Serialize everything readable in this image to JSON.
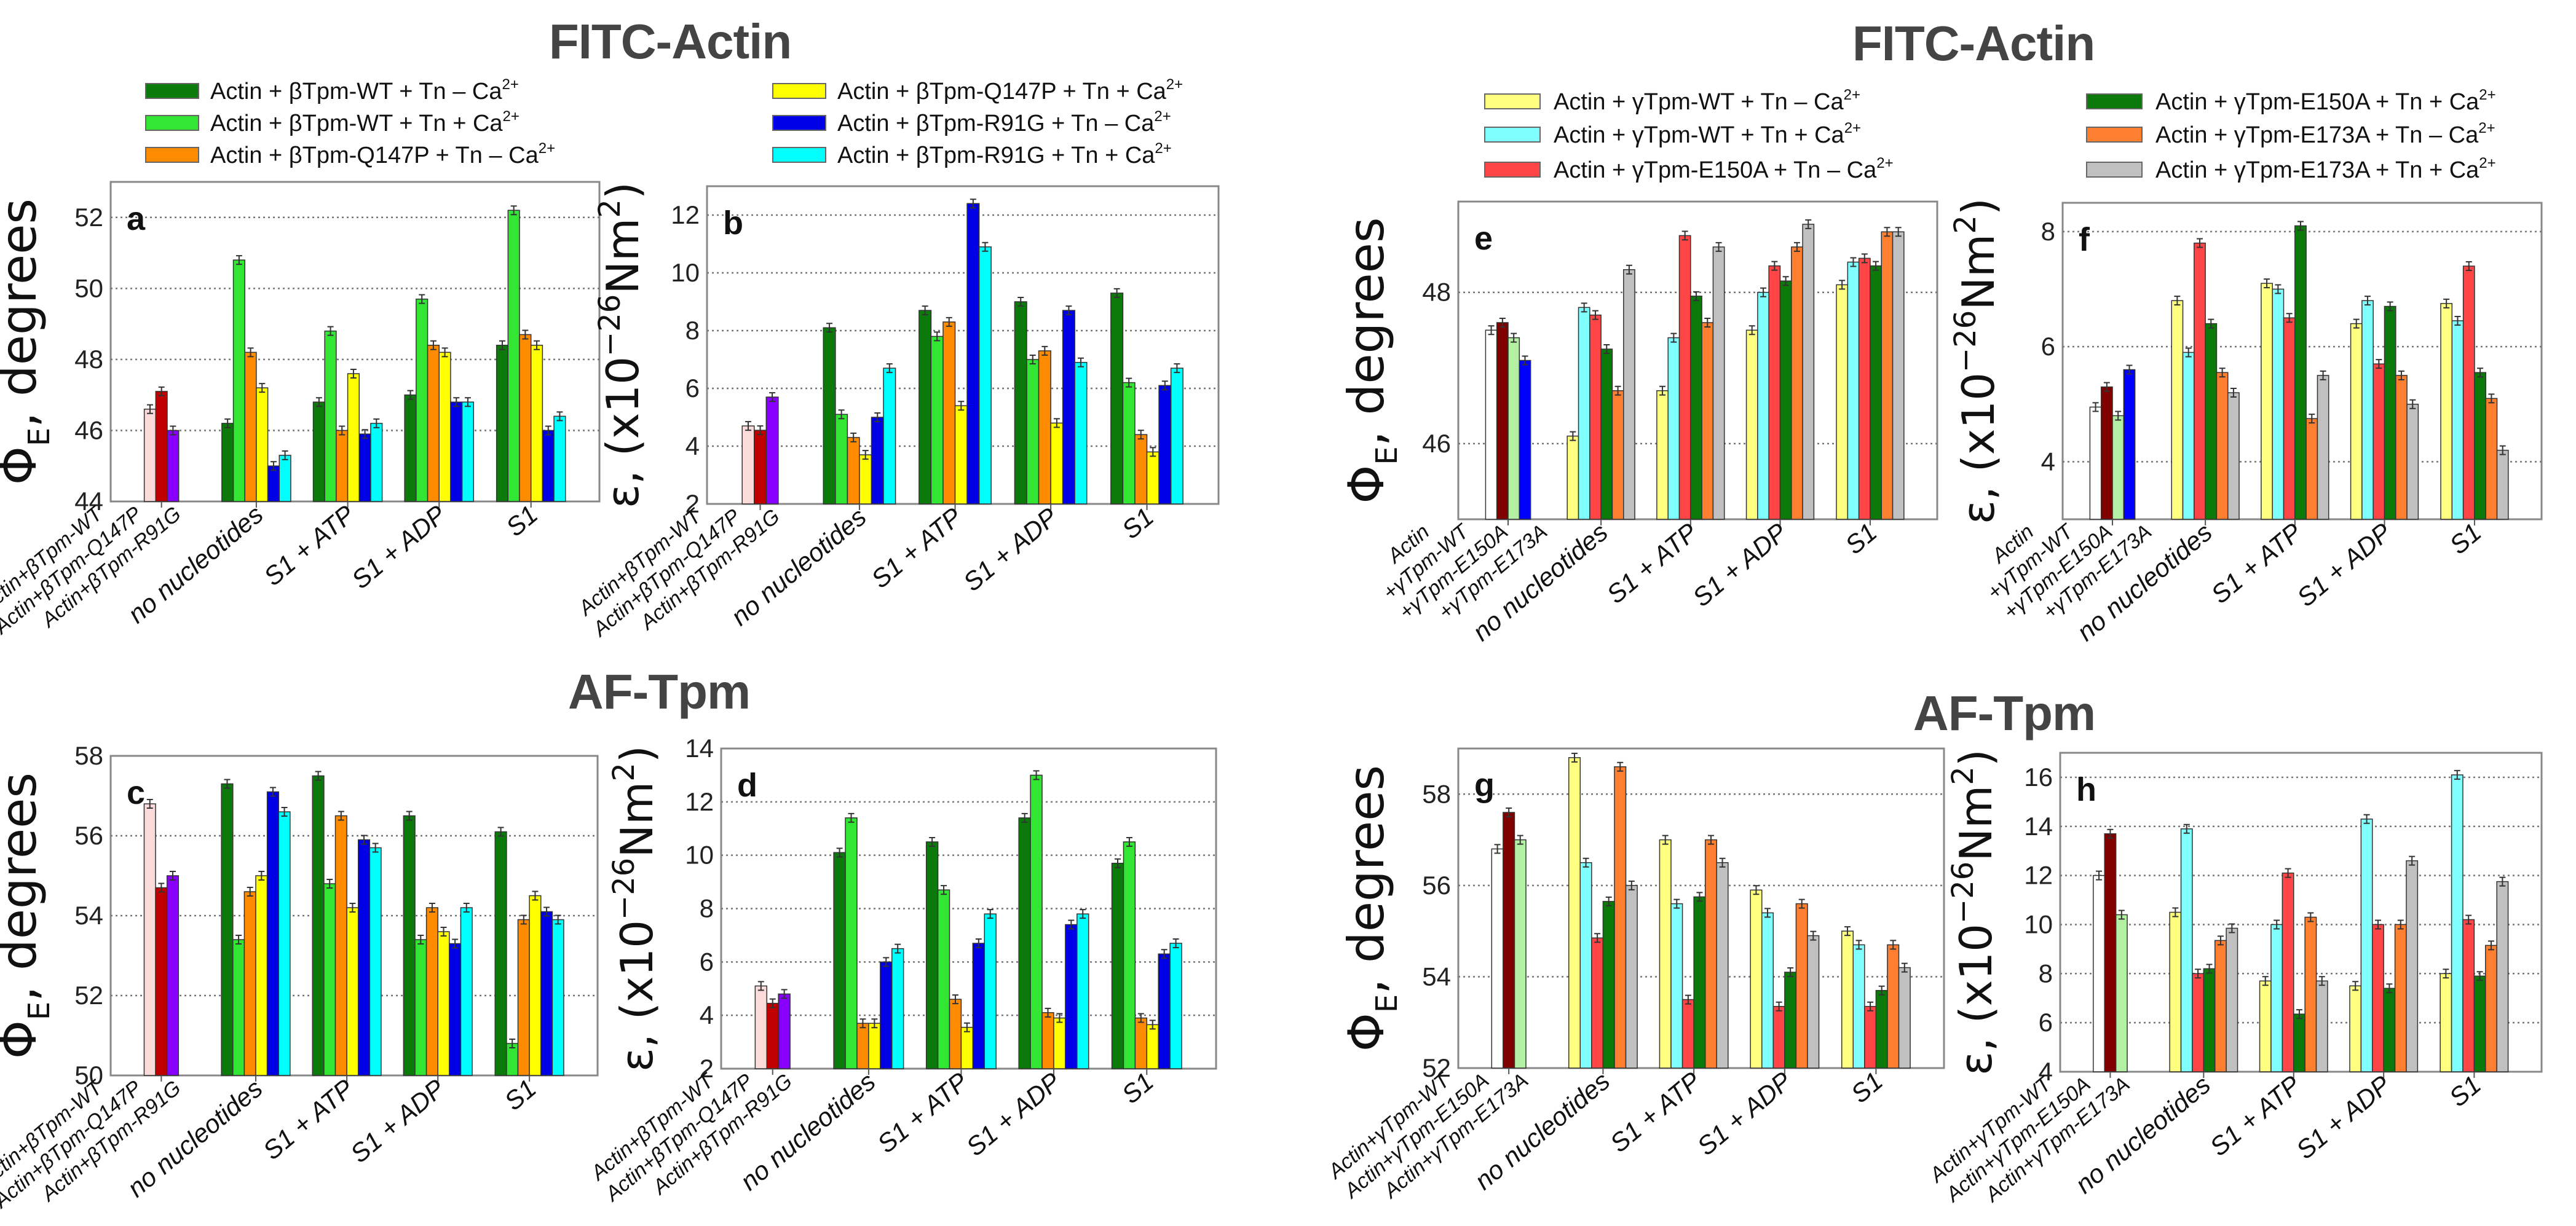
{
  "titles": {
    "fitc_left": "FITC-Actin",
    "af_left": "AF-Tpm",
    "fitc_right": "FITC-Actin",
    "af_right": "AF-Tpm"
  },
  "legend_left": [
    {
      "text": "Actin + βTpm-WT + Tn – Ca",
      "sup": "2+",
      "color": "#0b7a0b"
    },
    {
      "text": "Actin + βTpm-WT + Tn + Ca",
      "sup": "2+",
      "color": "#33e633"
    },
    {
      "text": "Actin + βTpm-Q147P + Tn – Ca",
      "sup": "2+",
      "color": "#ff8c00"
    },
    {
      "text": "Actin + βTpm-Q147P + Tn + Ca",
      "sup": "2+",
      "color": "#ffff00"
    },
    {
      "text": "Actin + βTpm-R91G + Tn – Ca",
      "sup": "2+",
      "color": "#0000e6"
    },
    {
      "text": "Actin + βTpm-R91G + Tn + Ca",
      "sup": "2+",
      "color": "#00ffff"
    }
  ],
  "legend_right": [
    {
      "text": "Actin + γTpm-WT + Tn – Ca",
      "sup": "2+",
      "color": "#ffff80"
    },
    {
      "text": "Actin + γTpm-WT + Tn + Ca",
      "sup": "2+",
      "color": "#80ffff"
    },
    {
      "text": "Actin + γTpm-E150A + Tn – Ca",
      "sup": "2+",
      "color": "#ff4545"
    },
    {
      "text": "Actin + γTpm-E150A + Tn + Ca",
      "sup": "2+",
      "color": "#0b7a0b"
    },
    {
      "text": "Actin + γTpm-E173A + Tn – Ca",
      "sup": "2+",
      "color": "#ff7f30"
    },
    {
      "text": "Actin + γTpm-E173A + Tn + Ca",
      "sup": "2+",
      "color": "#c0c0c0"
    }
  ],
  "chart_data": [
    {
      "panel": "a",
      "type": "bar",
      "ylabel": [
        {
          "t": "Φ"
        },
        {
          "t": "E",
          "sub": true
        },
        {
          "t": ", degrees"
        }
      ],
      "ylim": [
        44,
        53
      ],
      "yticks": [
        44,
        46,
        48,
        50,
        52
      ],
      "base_labels": [
        "Actin+βTpm-WT",
        "Actin+βTpm-Q147P",
        "Actin+βTpm-R91G"
      ],
      "base_values": [
        46.6,
        47.1,
        46.0
      ],
      "base_colors": [
        "#fbdada",
        "#c00000",
        "#8800ff"
      ],
      "categories": [
        "no nucleotides",
        "S1 + ATP",
        "S1 + ADP",
        "S1"
      ],
      "series": [
        {
          "name": "Actin + βTpm-WT + Tn – Ca2+",
          "color": "#0b7a0b",
          "values": [
            46.2,
            46.8,
            47.0,
            48.4
          ]
        },
        {
          "name": "Actin + βTpm-WT + Tn + Ca2+",
          "color": "#33e633",
          "values": [
            50.8,
            48.8,
            49.7,
            52.2
          ]
        },
        {
          "name": "Actin + βTpm-Q147P + Tn – Ca2+",
          "color": "#ff8c00",
          "values": [
            48.2,
            46.0,
            48.4,
            48.7
          ]
        },
        {
          "name": "Actin + βTpm-Q147P + Tn + Ca2+",
          "color": "#ffff00",
          "values": [
            47.2,
            47.6,
            48.2,
            48.4
          ]
        },
        {
          "name": "Actin + βTpm-R91G + Tn – Ca2+",
          "color": "#0000e6",
          "values": [
            45.0,
            45.9,
            46.8,
            46.0
          ]
        },
        {
          "name": "Actin + βTpm-R91G + Tn + Ca2+",
          "color": "#00ffff",
          "values": [
            45.3,
            46.2,
            46.8,
            46.4
          ]
        }
      ]
    },
    {
      "panel": "b",
      "type": "bar",
      "ylabel": [
        {
          "t": "ε, (x10"
        },
        {
          "t": "−26",
          "sup": true
        },
        {
          "t": "Nm"
        },
        {
          "t": "2",
          "sup": true
        },
        {
          "t": ")"
        }
      ],
      "ylim": [
        2,
        13
      ],
      "yticks": [
        2,
        4,
        6,
        8,
        10,
        12
      ],
      "base_labels": [
        "Actin+βTpm-WT",
        "Actin+βTpm-Q147P",
        "Actin+βTpm-R91G"
      ],
      "base_values": [
        4.7,
        4.55,
        5.7
      ],
      "base_colors": [
        "#fbdada",
        "#c00000",
        "#8800ff"
      ],
      "categories": [
        "no nucleotides",
        "S1 + ATP",
        "S1 + ADP",
        "S1"
      ],
      "series": [
        {
          "name": "Actin + βTpm-WT + Tn – Ca2+",
          "color": "#0b7a0b",
          "values": [
            8.1,
            8.7,
            9.0,
            9.3
          ]
        },
        {
          "name": "Actin + βTpm-WT + Tn + Ca2+",
          "color": "#33e633",
          "values": [
            5.1,
            7.8,
            7.0,
            6.2
          ]
        },
        {
          "name": "Actin + βTpm-Q147P + Tn – Ca2+",
          "color": "#ff8c00",
          "values": [
            4.3,
            8.3,
            7.3,
            4.4
          ]
        },
        {
          "name": "Actin + βTpm-Q147P + Tn + Ca2+",
          "color": "#ffff00",
          "values": [
            3.7,
            5.4,
            4.8,
            3.8
          ]
        },
        {
          "name": "Actin + βTpm-R91G + Tn – Ca2+",
          "color": "#0000e6",
          "values": [
            5.0,
            12.4,
            8.7,
            6.1
          ]
        },
        {
          "name": "Actin + βTpm-R91G + Tn + Ca2+",
          "color": "#00ffff",
          "values": [
            6.7,
            10.9,
            6.9,
            6.7
          ]
        }
      ]
    },
    {
      "panel": "c",
      "type": "bar",
      "ylabel": [
        {
          "t": "Φ"
        },
        {
          "t": "E",
          "sub": true
        },
        {
          "t": ", degrees"
        }
      ],
      "ylim": [
        50,
        58
      ],
      "yticks": [
        50,
        52,
        54,
        56,
        58
      ],
      "base_labels": [
        "Actin+βTpm-WT",
        "Actin+βTpm-Q147P",
        "Actin+βTpm-R91G"
      ],
      "base_values": [
        56.8,
        54.7,
        55.0
      ],
      "base_colors": [
        "#fbdada",
        "#c00000",
        "#8800ff"
      ],
      "categories": [
        "no nucleotides",
        "S1 + ATP",
        "S1 + ADP",
        "S1"
      ],
      "series": [
        {
          "name": "Actin + βTpm-WT + Tn – Ca2+",
          "color": "#0b7a0b",
          "values": [
            57.3,
            57.5,
            56.5,
            56.1
          ]
        },
        {
          "name": "Actin + βTpm-WT + Tn + Ca2+",
          "color": "#33e633",
          "values": [
            53.4,
            54.8,
            53.4,
            50.8
          ]
        },
        {
          "name": "Actin + βTpm-Q147P + Tn – Ca2+",
          "color": "#ff8c00",
          "values": [
            54.6,
            56.5,
            54.2,
            53.9
          ]
        },
        {
          "name": "Actin + βTpm-Q147P + Tn + Ca2+",
          "color": "#ffff00",
          "values": [
            55.0,
            54.2,
            53.6,
            54.5
          ]
        },
        {
          "name": "Actin + βTpm-R91G + Tn – Ca2+",
          "color": "#0000e6",
          "values": [
            57.1,
            55.9,
            53.3,
            54.1
          ]
        },
        {
          "name": "Actin + βTpm-R91G + Tn + Ca2+",
          "color": "#00ffff",
          "values": [
            56.6,
            55.7,
            54.2,
            53.9
          ]
        }
      ]
    },
    {
      "panel": "d",
      "type": "bar",
      "ylabel": [
        {
          "t": "ε, (x10"
        },
        {
          "t": "−26",
          "sup": true
        },
        {
          "t": "Nm"
        },
        {
          "t": "2",
          "sup": true
        },
        {
          "t": ")"
        }
      ],
      "ylim": [
        2,
        14
      ],
      "yticks": [
        2,
        4,
        6,
        8,
        10,
        12,
        14
      ],
      "base_labels": [
        "Actin+βTpm-WT",
        "Actin+βTpm-Q147P",
        "Actin+βTpm-R91G"
      ],
      "base_values": [
        5.1,
        4.45,
        4.8
      ],
      "base_colors": [
        "#fbdada",
        "#c00000",
        "#8800ff"
      ],
      "categories": [
        "no nucleotides",
        "S1 + ATP",
        "S1 + ADP",
        "S1"
      ],
      "series": [
        {
          "name": "Actin + βTpm-WT + Tn – Ca2+",
          "color": "#0b7a0b",
          "values": [
            10.1,
            10.5,
            11.4,
            9.7
          ]
        },
        {
          "name": "Actin + βTpm-WT + Tn + Ca2+",
          "color": "#33e633",
          "values": [
            11.4,
            8.7,
            13.0,
            10.5
          ]
        },
        {
          "name": "Actin + βTpm-Q147P + Tn – Ca2+",
          "color": "#ff8c00",
          "values": [
            3.7,
            4.6,
            4.1,
            3.9
          ]
        },
        {
          "name": "Actin + βTpm-Q147P + Tn + Ca2+",
          "color": "#ffff00",
          "values": [
            3.7,
            3.55,
            3.9,
            3.65
          ]
        },
        {
          "name": "Actin + βTpm-R91G + Tn – Ca2+",
          "color": "#0000e6",
          "values": [
            6.0,
            6.7,
            7.4,
            6.3
          ]
        },
        {
          "name": "Actin + βTpm-R91G + Tn + Ca2+",
          "color": "#00ffff",
          "values": [
            6.5,
            7.8,
            7.8,
            6.7
          ]
        }
      ]
    },
    {
      "panel": "e",
      "type": "bar",
      "ylabel": [
        {
          "t": "Φ"
        },
        {
          "t": "E",
          "sub": true
        },
        {
          "t": ", degrees"
        }
      ],
      "ylim": [
        45,
        49.2
      ],
      "yticks": [
        46,
        48
      ],
      "base_labels": [
        "Actin",
        "+γTpm-WT",
        "+γTpm-E150A",
        "+γTpm-E173A"
      ],
      "base_values": [
        47.5,
        47.6,
        47.4,
        47.1
      ],
      "base_colors": [
        "#ffffff",
        "#800000",
        "#b4f0a4",
        "#0000ff"
      ],
      "categories": [
        "no nucleotides",
        "S1 + ATP",
        "S1 + ADP",
        "S1"
      ],
      "series": [
        {
          "name": "Actin + γTpm-WT + Tn – Ca2+",
          "color": "#ffff80",
          "values": [
            46.1,
            46.7,
            47.5,
            48.1
          ]
        },
        {
          "name": "Actin + γTpm-WT + Tn + Ca2+",
          "color": "#80ffff",
          "values": [
            47.8,
            47.4,
            48.0,
            48.4
          ]
        },
        {
          "name": "Actin + γTpm-E150A + Tn – Ca2+",
          "color": "#ff4545",
          "values": [
            47.7,
            48.75,
            48.35,
            48.45
          ]
        },
        {
          "name": "Actin + γTpm-E150A + Tn + Ca2+",
          "color": "#0b7a0b",
          "values": [
            47.25,
            47.95,
            48.15,
            48.35
          ]
        },
        {
          "name": "Actin + γTpm-E173A + Tn – Ca2+",
          "color": "#ff7f30",
          "values": [
            46.7,
            47.6,
            48.6,
            48.8
          ]
        },
        {
          "name": "Actin + γTpm-E173A + Tn + Ca2+",
          "color": "#c0c0c0",
          "values": [
            48.3,
            48.6,
            48.9,
            48.8
          ]
        }
      ]
    },
    {
      "panel": "f",
      "type": "bar",
      "ylabel": [
        {
          "t": "ε, (x10"
        },
        {
          "t": "−26",
          "sup": true
        },
        {
          "t": "Nm"
        },
        {
          "t": "2",
          "sup": true
        },
        {
          "t": ")"
        }
      ],
      "ylim": [
        3,
        8.5
      ],
      "yticks": [
        4,
        6,
        8
      ],
      "base_labels": [
        "Actin",
        "+γTpm-WT",
        "+γTpm-E150A",
        "+γTpm-E173A"
      ],
      "base_values": [
        4.95,
        5.3,
        4.8,
        5.6
      ],
      "base_colors": [
        "#ffffff",
        "#800000",
        "#b4f0a4",
        "#0000ff"
      ],
      "categories": [
        "no nucleotides",
        "S1 + ATP",
        "S1 + ADP",
        "S1"
      ],
      "series": [
        {
          "name": "Actin + γTpm-WT + Tn – Ca2+",
          "color": "#ffff80",
          "values": [
            6.8,
            7.1,
            6.4,
            6.75
          ]
        },
        {
          "name": "Actin + γTpm-WT + Tn + Ca2+",
          "color": "#80ffff",
          "values": [
            5.9,
            7.0,
            6.8,
            6.45
          ]
        },
        {
          "name": "Actin + γTpm-E150A + Tn – Ca2+",
          "color": "#ff4545",
          "values": [
            7.8,
            6.5,
            5.7,
            7.4
          ]
        },
        {
          "name": "Actin + γTpm-E150A + Tn + Ca2+",
          "color": "#0b7a0b",
          "values": [
            6.4,
            8.1,
            6.7,
            5.55
          ]
        },
        {
          "name": "Actin + γTpm-E173A + Tn – Ca2+",
          "color": "#ff7f30",
          "values": [
            5.55,
            4.75,
            5.5,
            5.1
          ]
        },
        {
          "name": "Actin + γTpm-E173A + Tn + Ca2+",
          "color": "#c0c0c0",
          "values": [
            5.2,
            5.5,
            5.0,
            4.2
          ]
        }
      ]
    },
    {
      "panel": "g",
      "type": "bar",
      "ylabel": [
        {
          "t": "Φ"
        },
        {
          "t": "E",
          "sub": true
        },
        {
          "t": ", degrees"
        }
      ],
      "ylim": [
        52,
        59
      ],
      "yticks": [
        52,
        54,
        56,
        58
      ],
      "base_labels": [
        "Actin+γTpm-WT",
        "Actin+γTpm-E150A",
        "Actin+γTpm-E173A"
      ],
      "base_values": [
        56.8,
        57.6,
        57.0
      ],
      "base_colors": [
        "#ffffff",
        "#800000",
        "#b4f0a4"
      ],
      "categories": [
        "no nucleotides",
        "S1 + ATP",
        "S1 + ADP",
        "S1"
      ],
      "series": [
        {
          "name": "Actin + γTpm-WT + Tn – Ca2+",
          "color": "#ffff80",
          "values": [
            58.8,
            57.0,
            55.9,
            55.0
          ]
        },
        {
          "name": "Actin + γTpm-WT + Tn + Ca2+",
          "color": "#80ffff",
          "values": [
            56.5,
            55.6,
            55.4,
            54.7
          ]
        },
        {
          "name": "Actin + γTpm-E150A + Tn – Ca2+",
          "color": "#ff4545",
          "values": [
            54.85,
            53.5,
            53.35,
            53.35
          ]
        },
        {
          "name": "Actin + γTpm-E150A + Tn + Ca2+",
          "color": "#0b7a0b",
          "values": [
            55.65,
            55.75,
            54.1,
            53.7
          ]
        },
        {
          "name": "Actin + γTpm-E173A + Tn – Ca2+",
          "color": "#ff7f30",
          "values": [
            58.6,
            57.0,
            55.6,
            54.7
          ]
        },
        {
          "name": "Actin + γTpm-E173A + Tn + Ca2+",
          "color": "#c0c0c0",
          "values": [
            56.0,
            56.5,
            54.9,
            54.2
          ]
        }
      ]
    },
    {
      "panel": "h",
      "type": "bar",
      "ylabel": [
        {
          "t": "ε, (x10"
        },
        {
          "t": "−26",
          "sup": true
        },
        {
          "t": "Nm"
        },
        {
          "t": "2",
          "sup": true
        },
        {
          "t": ")"
        }
      ],
      "ylim": [
        4,
        17
      ],
      "yticks": [
        4,
        6,
        8,
        10,
        12,
        14,
        16
      ],
      "base_labels": [
        "Actin+γTpm-WT",
        "Actin+γTpm-E150A",
        "Actin+γTpm-E173A"
      ],
      "base_values": [
        12.0,
        13.7,
        10.4
      ],
      "base_colors": [
        "#ffffff",
        "#800000",
        "#b4f0a4"
      ],
      "categories": [
        "no nucleotides",
        "S1 + ATP",
        "S1 + ADP",
        "S1"
      ],
      "series": [
        {
          "name": "Actin + γTpm-WT + Tn – Ca2+",
          "color": "#ffff80",
          "values": [
            10.5,
            7.7,
            7.5,
            8.0
          ]
        },
        {
          "name": "Actin + γTpm-WT + Tn + Ca2+",
          "color": "#80ffff",
          "values": [
            13.9,
            10.0,
            14.3,
            16.1
          ]
        },
        {
          "name": "Actin + γTpm-E150A + Tn – Ca2+",
          "color": "#ff4545",
          "values": [
            8.0,
            12.1,
            10.0,
            10.2
          ]
        },
        {
          "name": "Actin + γTpm-E150A + Tn + Ca2+",
          "color": "#0b7a0b",
          "values": [
            8.2,
            6.35,
            7.4,
            7.9
          ]
        },
        {
          "name": "Actin + γTpm-E173A + Tn – Ca2+",
          "color": "#ff7f30",
          "values": [
            9.35,
            10.3,
            10.0,
            9.15
          ]
        },
        {
          "name": "Actin + γTpm-E173A + Tn + Ca2+",
          "color": "#c0c0c0",
          "values": [
            9.85,
            7.7,
            12.6,
            11.75
          ]
        }
      ]
    }
  ]
}
